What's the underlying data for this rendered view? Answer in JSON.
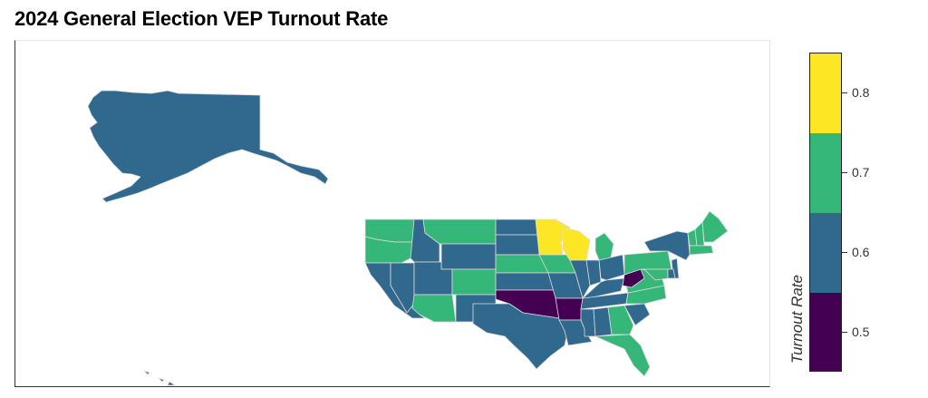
{
  "page": {
    "title": "2024 General Election VEP Turnout Rate"
  },
  "legend": {
    "title": "Turnout Rate",
    "ticks": [
      "0.5",
      "0.6",
      "0.7",
      "0.8"
    ],
    "bins": [
      {
        "range": [
          0.45,
          0.55
        ],
        "color": "#440154"
      },
      {
        "range": [
          0.55,
          0.65
        ],
        "color": "#31688e"
      },
      {
        "range": [
          0.65,
          0.75
        ],
        "color": "#35b779"
      },
      {
        "range": [
          0.75,
          0.85
        ],
        "color": "#fde725"
      }
    ]
  },
  "chart_data": {
    "type": "choropleth",
    "title": "2024 General Election VEP Turnout Rate",
    "colorbar_label": "Turnout Rate",
    "colorbar_ticks": [
      0.5,
      0.6,
      0.7,
      0.8
    ],
    "color_range": [
      0.45,
      0.85
    ],
    "color_scale": "viridis (4 discrete bins)",
    "states": [
      {
        "state": "AK",
        "value": 0.6
      },
      {
        "state": "WA",
        "value": 0.7
      },
      {
        "state": "OR",
        "value": 0.7
      },
      {
        "state": "CA",
        "value": 0.6
      },
      {
        "state": "NV",
        "value": 0.6
      },
      {
        "state": "ID",
        "value": 0.6
      },
      {
        "state": "MT",
        "value": 0.7
      },
      {
        "state": "WY",
        "value": 0.6
      },
      {
        "state": "UT",
        "value": 0.6
      },
      {
        "state": "AZ",
        "value": 0.7
      },
      {
        "state": "CO",
        "value": 0.7
      },
      {
        "state": "NM",
        "value": 0.6
      },
      {
        "state": "ND",
        "value": 0.6
      },
      {
        "state": "SD",
        "value": 0.6
      },
      {
        "state": "NE",
        "value": 0.7
      },
      {
        "state": "KS",
        "value": 0.6
      },
      {
        "state": "OK",
        "value": 0.5
      },
      {
        "state": "TX",
        "value": 0.6
      },
      {
        "state": "MN",
        "value": 0.8
      },
      {
        "state": "IA",
        "value": 0.7
      },
      {
        "state": "MO",
        "value": 0.6
      },
      {
        "state": "AR",
        "value": 0.5
      },
      {
        "state": "LA",
        "value": 0.6
      },
      {
        "state": "WI",
        "value": 0.8
      },
      {
        "state": "IL",
        "value": 0.6
      },
      {
        "state": "IN",
        "value": 0.6
      },
      {
        "state": "MI",
        "value": 0.7
      },
      {
        "state": "OH",
        "value": 0.6
      },
      {
        "state": "KY",
        "value": 0.6
      },
      {
        "state": "TN",
        "value": 0.6
      },
      {
        "state": "MS",
        "value": 0.6
      },
      {
        "state": "AL",
        "value": 0.6
      },
      {
        "state": "GA",
        "value": 0.7
      },
      {
        "state": "FL",
        "value": 0.7
      },
      {
        "state": "SC",
        "value": 0.6
      },
      {
        "state": "NC",
        "value": 0.7
      },
      {
        "state": "VA",
        "value": 0.7
      },
      {
        "state": "WV",
        "value": 0.5
      },
      {
        "state": "PA",
        "value": 0.7
      },
      {
        "state": "NY",
        "value": 0.6
      },
      {
        "state": "ME",
        "value": 0.7
      },
      {
        "state": "VT",
        "value": 0.7
      },
      {
        "state": "NH",
        "value": 0.7
      },
      {
        "state": "MA",
        "value": 0.7
      },
      {
        "state": "NJ",
        "value": 0.6
      },
      {
        "state": "MD",
        "value": 0.7
      },
      {
        "state": "DE",
        "value": 0.6
      },
      {
        "state": "HI",
        "value": 0.6
      }
    ]
  }
}
